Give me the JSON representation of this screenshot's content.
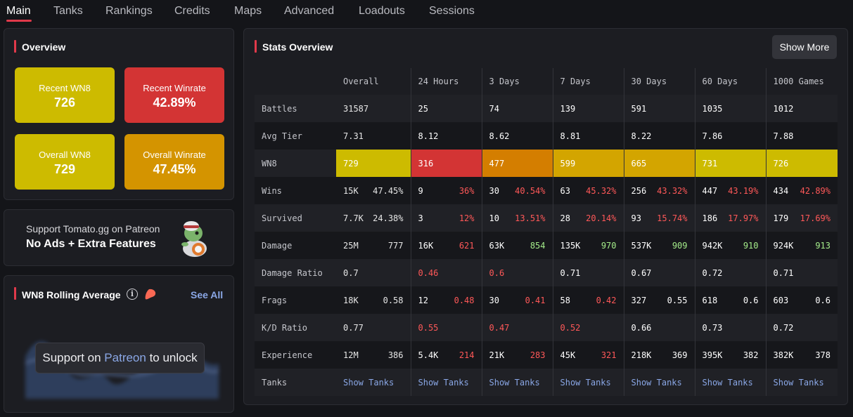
{
  "nav": {
    "tabs": [
      {
        "label": "Main",
        "active": true
      },
      {
        "label": "Tanks"
      },
      {
        "label": "Rankings"
      },
      {
        "label": "Credits"
      },
      {
        "label": "Maps"
      },
      {
        "label": "Advanced"
      },
      {
        "label": "Loadouts"
      },
      {
        "label": "Sessions"
      }
    ]
  },
  "overview": {
    "title": "Overview",
    "tiles": [
      {
        "label": "Recent WN8",
        "value": "726",
        "color": "#cdbb00"
      },
      {
        "label": "Recent Winrate",
        "value": "42.89%",
        "color": "#d33434"
      },
      {
        "label": "Overall WN8",
        "value": "729",
        "color": "#cdbb00"
      },
      {
        "label": "Overall Winrate",
        "value": "47.45%",
        "color": "#d49400"
      }
    ]
  },
  "patreon": {
    "line1": "Support Tomato.gg on Patreon",
    "line2": "No Ads + Extra Features",
    "icon": "turtle-mascot-icon"
  },
  "rolling": {
    "title": "WN8 Rolling Average",
    "see_all": "See All",
    "unlock_prefix": "Support on ",
    "unlock_link": "Patreon",
    "unlock_suffix": " to unlock"
  },
  "stats": {
    "title": "Stats Overview",
    "show_more": "Show More",
    "columns": [
      "Overall",
      "24 Hours",
      "3 Days",
      "7 Days",
      "30 Days",
      "60 Days",
      "1000 Games"
    ],
    "rows": {
      "battles": {
        "label": "Battles",
        "values": [
          "31587",
          "25",
          "74",
          "139",
          "591",
          "1035",
          "1012"
        ]
      },
      "avg_tier": {
        "label": "Avg Tier",
        "values": [
          "7.31",
          "8.12",
          "8.62",
          "8.81",
          "8.22",
          "7.86",
          "7.88"
        ]
      },
      "wn8": {
        "label": "WN8",
        "values": [
          "729",
          "316",
          "477",
          "599",
          "665",
          "731",
          "726"
        ]
      },
      "wins": {
        "label": "Wins",
        "counts": [
          "15K",
          "9",
          "30",
          "63",
          "256",
          "447",
          "434"
        ],
        "rates": [
          "47.45%",
          "36%",
          "40.54%",
          "45.32%",
          "43.32%",
          "43.19%",
          "42.89%"
        ]
      },
      "survived": {
        "label": "Survived",
        "counts": [
          "7.7K",
          "3",
          "10",
          "28",
          "93",
          "186",
          "179"
        ],
        "rates": [
          "24.38%",
          "12%",
          "13.51%",
          "20.14%",
          "15.74%",
          "17.97%",
          "17.69%"
        ]
      },
      "damage": {
        "label": "Damage",
        "totals": [
          "25M",
          "16K",
          "63K",
          "135K",
          "537K",
          "942K",
          "924K"
        ],
        "avgs": [
          "777",
          "621",
          "854",
          "970",
          "909",
          "910",
          "913"
        ]
      },
      "damage_ratio": {
        "label": "Damage Ratio",
        "values": [
          "0.7",
          "0.46",
          "0.6",
          "0.71",
          "0.67",
          "0.72",
          "0.71"
        ]
      },
      "frags": {
        "label": "Frags",
        "totals": [
          "18K",
          "12",
          "30",
          "58",
          "327",
          "618",
          "603"
        ],
        "avgs": [
          "0.58",
          "0.48",
          "0.41",
          "0.42",
          "0.55",
          "0.6",
          "0.6"
        ]
      },
      "kd": {
        "label": "K/D Ratio",
        "values": [
          "0.77",
          "0.55",
          "0.47",
          "0.52",
          "0.66",
          "0.73",
          "0.72"
        ]
      },
      "exp": {
        "label": "Experience",
        "totals": [
          "12M",
          "5.4K",
          "21K",
          "45K",
          "218K",
          "395K",
          "382K"
        ],
        "avgs": [
          "386",
          "214",
          "283",
          "321",
          "369",
          "382",
          "378"
        ]
      },
      "tanks": {
        "label": "Tanks",
        "link": "Show Tanks"
      }
    }
  }
}
